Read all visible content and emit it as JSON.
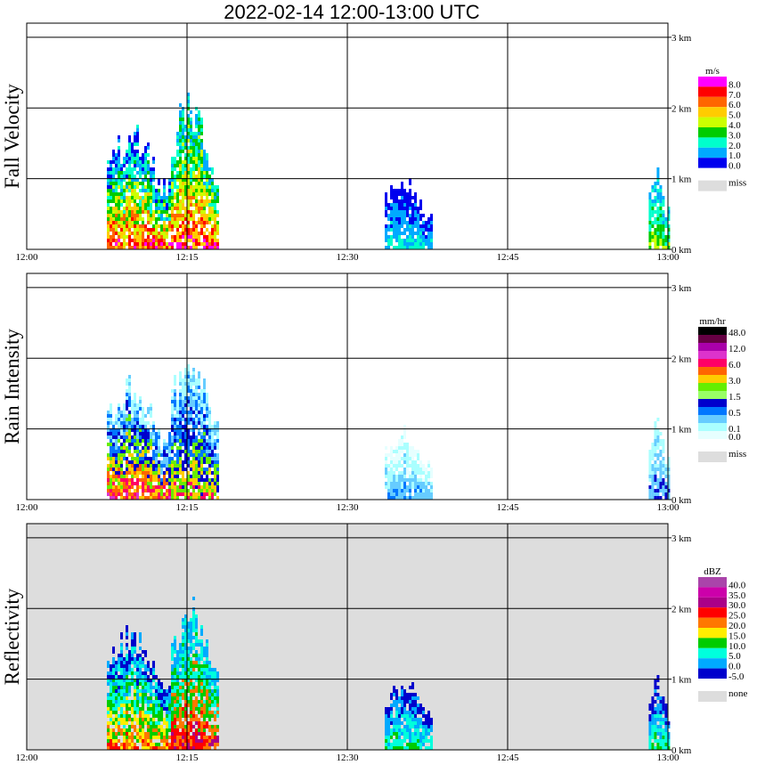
{
  "title": "2022-02-14   12:00-13:00 UTC",
  "chart_data": [
    {
      "type": "heatmap",
      "panel_label": "Fall Velocity",
      "x_ticks": [
        "12:00",
        "12:15",
        "12:30",
        "12:45",
        "13:00"
      ],
      "y_ticks": [
        "0 km",
        "1 km",
        "2 km",
        "3 km"
      ],
      "xlim": [
        0,
        60
      ],
      "ylim": [
        0,
        3.2
      ],
      "grid": true,
      "background": "#ffffff",
      "legend": {
        "unit": "m/s",
        "levels": [
          "8.0",
          "7.0",
          "6.0",
          "5.0",
          "4.0",
          "3.0",
          "2.0",
          "1.0",
          "0.0"
        ],
        "colors": [
          "#ff00ff",
          "#ff0000",
          "#ff6600",
          "#ffcc00",
          "#ccff00",
          "#00cc00",
          "#00ffcc",
          "#00aaff",
          "#0000ee"
        ],
        "missing_label": "miss",
        "missing_color": "#dddddd"
      },
      "echoes": [
        {
          "t0": 7.5,
          "t1": 13.5,
          "top": 1.7,
          "palette": [
            0,
            1,
            2,
            3,
            4,
            5,
            6,
            7,
            8
          ]
        },
        {
          "t0": 13.5,
          "t1": 18.0,
          "top": 2.1,
          "palette": [
            0,
            1,
            2,
            3,
            4,
            5,
            6,
            7
          ]
        },
        {
          "t0": 33.5,
          "t1": 38.0,
          "top": 1.0,
          "palette": [
            6,
            7,
            8
          ]
        },
        {
          "t0": 58.2,
          "t1": 60.0,
          "top": 1.1,
          "palette": [
            4,
            5,
            6,
            7
          ]
        }
      ]
    },
    {
      "type": "heatmap",
      "panel_label": "Rain Intensity",
      "x_ticks": [
        "12:00",
        "12:15",
        "12:30",
        "12:45",
        "13:00"
      ],
      "y_ticks": [
        "0 km",
        "1 km",
        "2 km",
        "3 km"
      ],
      "xlim": [
        0,
        60
      ],
      "ylim": [
        0,
        3.2
      ],
      "grid": true,
      "background": "#ffffff",
      "legend": {
        "unit": "mm/hr",
        "levels": [
          "48.0",
          "",
          "12.0",
          "",
          "6.0",
          "",
          "3.0",
          "",
          "1.5",
          "",
          "0.5",
          "",
          "0.1",
          "0.0"
        ],
        "colors": [
          "#000000",
          "#660044",
          "#aa00aa",
          "#dd33cc",
          "#ff0066",
          "#ff6600",
          "#ffcc00",
          "#66ee00",
          "#99ff66",
          "#0000cc",
          "#0077ff",
          "#66ccff",
          "#aaffff",
          "#e6ffff"
        ],
        "missing_label": "miss",
        "missing_color": "#dddddd"
      },
      "echoes": [
        {
          "t0": 7.5,
          "t1": 13.5,
          "top": 1.7,
          "palette": [
            3,
            4,
            5,
            6,
            7,
            9,
            10,
            11,
            12
          ]
        },
        {
          "t0": 13.5,
          "t1": 18.0,
          "top": 2.1,
          "palette": [
            4,
            6,
            7,
            9,
            10,
            11,
            12
          ]
        },
        {
          "t0": 33.5,
          "t1": 38.0,
          "top": 1.0,
          "palette": [
            10,
            11,
            12,
            13
          ]
        },
        {
          "t0": 58.2,
          "t1": 60.0,
          "top": 1.1,
          "palette": [
            9,
            11,
            12
          ]
        }
      ]
    },
    {
      "type": "heatmap",
      "panel_label": "Reflectivity",
      "x_ticks": [
        "12:00",
        "12:15",
        "12:30",
        "12:45",
        "13:00"
      ],
      "y_ticks": [
        "0 km",
        "1 km",
        "2 km",
        "3 km"
      ],
      "xlim": [
        0,
        60
      ],
      "ylim": [
        0,
        3.2
      ],
      "grid": true,
      "background": "#dddddd",
      "legend": {
        "unit": "dBZ",
        "levels": [
          "40.0",
          "35.0",
          "30.0",
          "25.0",
          "20.0",
          "15.0",
          "10.0",
          "5.0",
          "0.0",
          "-5.0"
        ],
        "colors": [
          "#aa44aa",
          "#cc00aa",
          "#aa0088",
          "#ff0000",
          "#ff7700",
          "#ffee00",
          "#00cc00",
          "#00ffdd",
          "#00aaff",
          "#0000cc"
        ],
        "missing_label": "none",
        "missing_color": "#dddddd"
      },
      "echoes": [
        {
          "t0": 7.5,
          "t1": 13.5,
          "top": 1.7,
          "palette": [
            3,
            4,
            5,
            6,
            7,
            8,
            9
          ]
        },
        {
          "t0": 13.5,
          "t1": 18.0,
          "top": 2.1,
          "palette": [
            2,
            3,
            4,
            6,
            7,
            8
          ]
        },
        {
          "t0": 33.5,
          "t1": 38.0,
          "top": 1.0,
          "palette": [
            6,
            7,
            8,
            9
          ]
        },
        {
          "t0": 58.2,
          "t1": 60.0,
          "top": 1.1,
          "palette": [
            6,
            7,
            8,
            9
          ]
        }
      ]
    }
  ]
}
